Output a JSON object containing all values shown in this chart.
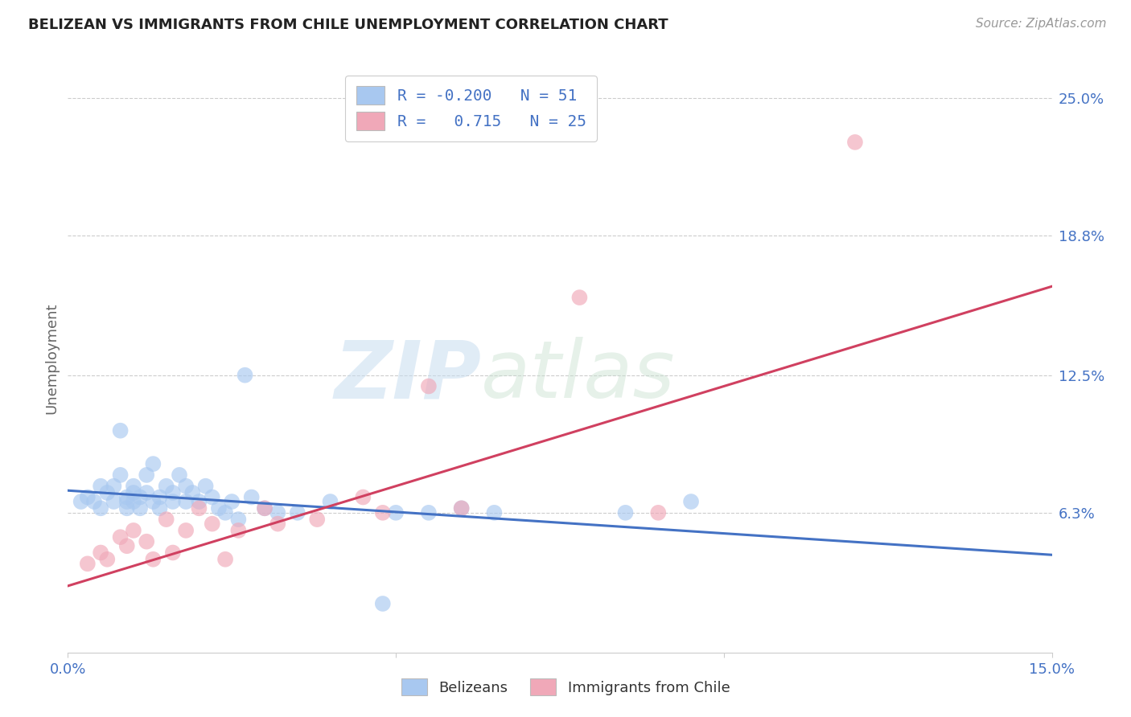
{
  "title": "BELIZEAN VS IMMIGRANTS FROM CHILE UNEMPLOYMENT CORRELATION CHART",
  "source": "Source: ZipAtlas.com",
  "ylabel": "Unemployment",
  "xlim": [
    0.0,
    0.15
  ],
  "ylim": [
    0.0,
    0.265
  ],
  "xticks": [
    0.0,
    0.05,
    0.1,
    0.15
  ],
  "xticklabels": [
    "0.0%",
    "",
    "",
    "15.0%"
  ],
  "yticks_right": [
    0.063,
    0.125,
    0.188,
    0.25
  ],
  "yticklabels_right": [
    "6.3%",
    "12.5%",
    "18.8%",
    "25.0%"
  ],
  "belizean_R": -0.2,
  "belizean_N": 51,
  "chile_R": 0.715,
  "chile_N": 25,
  "belizean_color": "#a8c8f0",
  "chile_color": "#f0a8b8",
  "belizean_line_color": "#4472c4",
  "chile_line_color": "#d04060",
  "legend_label_belizean": "Belizeans",
  "legend_label_chile": "Immigrants from Chile",
  "watermark_zip": "ZIP",
  "watermark_atlas": "atlas",
  "blue_line_x0": 0.0,
  "blue_line_y0": 0.073,
  "blue_line_x1": 0.15,
  "blue_line_y1": 0.044,
  "pink_line_x0": 0.0,
  "pink_line_y0": 0.03,
  "pink_line_x1": 0.15,
  "pink_line_y1": 0.165,
  "belizean_x": [
    0.002,
    0.003,
    0.004,
    0.005,
    0.005,
    0.006,
    0.007,
    0.007,
    0.008,
    0.008,
    0.009,
    0.009,
    0.009,
    0.01,
    0.01,
    0.01,
    0.011,
    0.011,
    0.012,
    0.012,
    0.013,
    0.013,
    0.014,
    0.014,
    0.015,
    0.016,
    0.016,
    0.017,
    0.018,
    0.018,
    0.019,
    0.02,
    0.021,
    0.022,
    0.023,
    0.024,
    0.025,
    0.026,
    0.027,
    0.028,
    0.03,
    0.032,
    0.035,
    0.04,
    0.05,
    0.055,
    0.06,
    0.065,
    0.085,
    0.095,
    0.048
  ],
  "belizean_y": [
    0.068,
    0.07,
    0.068,
    0.075,
    0.065,
    0.072,
    0.068,
    0.075,
    0.1,
    0.08,
    0.068,
    0.07,
    0.065,
    0.072,
    0.068,
    0.075,
    0.07,
    0.065,
    0.08,
    0.072,
    0.068,
    0.085,
    0.07,
    0.065,
    0.075,
    0.072,
    0.068,
    0.08,
    0.068,
    0.075,
    0.072,
    0.068,
    0.075,
    0.07,
    0.065,
    0.063,
    0.068,
    0.06,
    0.125,
    0.07,
    0.065,
    0.063,
    0.063,
    0.068,
    0.063,
    0.063,
    0.065,
    0.063,
    0.063,
    0.068,
    0.022
  ],
  "chile_x": [
    0.003,
    0.005,
    0.006,
    0.008,
    0.009,
    0.01,
    0.012,
    0.013,
    0.015,
    0.016,
    0.018,
    0.02,
    0.022,
    0.024,
    0.026,
    0.03,
    0.032,
    0.038,
    0.045,
    0.048,
    0.055,
    0.06,
    0.078,
    0.09,
    0.12
  ],
  "chile_y": [
    0.04,
    0.045,
    0.042,
    0.052,
    0.048,
    0.055,
    0.05,
    0.042,
    0.06,
    0.045,
    0.055,
    0.065,
    0.058,
    0.042,
    0.055,
    0.065,
    0.058,
    0.06,
    0.07,
    0.063,
    0.12,
    0.065,
    0.16,
    0.063,
    0.23
  ]
}
